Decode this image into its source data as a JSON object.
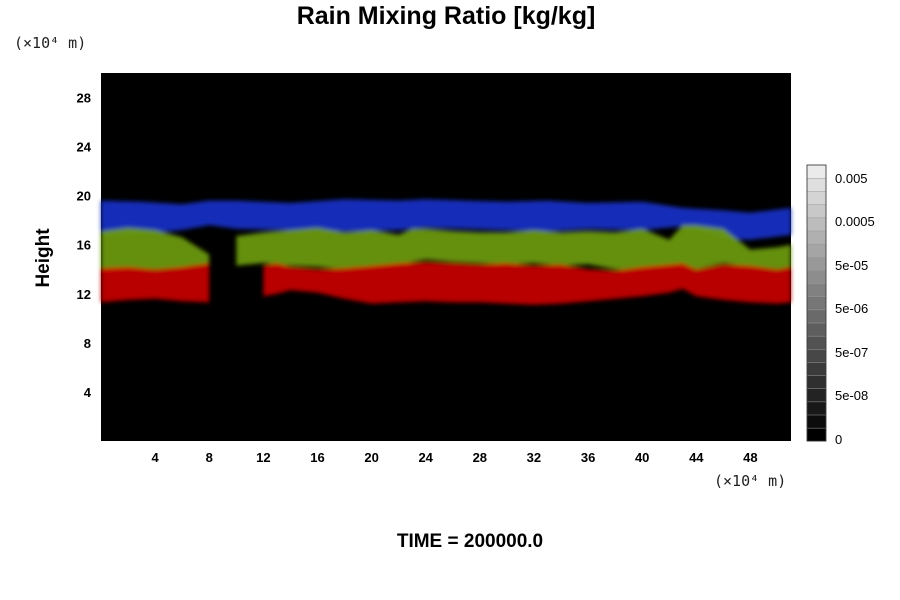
{
  "chart_data": {
    "type": "heatmap",
    "title": "Rain Mixing Ratio [kg/kg]",
    "ylabel": "Height",
    "xlabel": "",
    "x_unit": "(×10⁴ m)",
    "y_unit": "(×10⁴ m)",
    "xlim": [
      0,
      51
    ],
    "ylim": [
      0,
      30
    ],
    "x_ticks": [
      4,
      8,
      12,
      16,
      20,
      24,
      28,
      32,
      36,
      40,
      44,
      48
    ],
    "y_ticks": [
      4,
      8,
      12,
      16,
      20,
      24,
      28
    ],
    "colorbar": {
      "labels": [
        "0.005",
        "0.0005",
        "5e-05",
        "5e-06",
        "5e-07",
        "5e-08",
        "0"
      ],
      "levels": 21
    },
    "layers": [
      {
        "color": "#1830c8",
        "x": [
          0,
          3,
          6,
          8,
          10,
          14,
          18,
          22,
          24,
          27,
          30,
          33,
          36,
          40,
          43,
          46,
          48,
          51
        ],
        "top": [
          19.6,
          19.5,
          19.3,
          19.6,
          19.6,
          19.4,
          19.7,
          19.6,
          19.7,
          19.6,
          19.5,
          19.6,
          19.4,
          19.5,
          19.0,
          18.8,
          18.6,
          19.0
        ],
        "bottom": [
          16.6,
          16.9,
          17.2,
          17.6,
          17.3,
          17.2,
          17.1,
          17.2,
          17.4,
          17.3,
          17.2,
          17.1,
          17.3,
          17.2,
          17.5,
          16.5,
          16.4,
          16.8
        ]
      },
      {
        "color": "#6e9c08",
        "x": [
          0,
          2,
          4,
          6,
          8,
          9,
          10,
          12,
          14,
          16,
          18,
          20,
          22,
          23,
          24,
          26,
          28,
          30,
          32,
          34,
          36,
          38,
          40,
          42,
          43,
          44,
          46,
          48,
          50,
          51
        ],
        "top": [
          17.1,
          17.4,
          17.2,
          16.6,
          15.2,
          null,
          16.7,
          17.0,
          17.2,
          17.4,
          17.0,
          17.2,
          16.8,
          17.3,
          17.3,
          17.1,
          17.0,
          17.0,
          17.2,
          17.0,
          17.1,
          17.0,
          17.3,
          16.4,
          17.6,
          17.6,
          17.3,
          15.6,
          15.8,
          16.0
        ],
        "bottom": [
          13.7,
          13.9,
          14.0,
          14.1,
          14.5,
          null,
          14.3,
          14.5,
          14.3,
          14.2,
          14.0,
          14.1,
          14.3,
          14.6,
          14.8,
          14.6,
          14.5,
          14.4,
          14.5,
          14.3,
          14.4,
          14.0,
          13.9,
          14.2,
          14.3,
          14.0,
          14.5,
          14.2,
          14.0,
          14.2
        ]
      },
      {
        "color": "#c80000",
        "x": [
          0,
          2,
          4,
          6,
          8,
          9,
          10,
          12,
          13,
          14,
          16,
          18,
          20,
          22,
          24,
          26,
          28,
          30,
          32,
          34,
          36,
          38,
          40,
          42,
          43,
          44,
          46,
          48,
          50,
          51
        ],
        "top": [
          14.1,
          14.2,
          14.0,
          14.2,
          14.5,
          null,
          null,
          14.3,
          14.5,
          14.2,
          14.0,
          14.1,
          14.3,
          14.5,
          14.6,
          14.5,
          14.4,
          14.5,
          14.3,
          14.4,
          14.0,
          13.9,
          14.2,
          14.4,
          14.5,
          14.0,
          14.4,
          14.3,
          14.0,
          14.2
        ],
        "bottom": [
          11.3,
          11.5,
          11.6,
          11.4,
          11.3,
          null,
          null,
          11.8,
          12.0,
          12.3,
          12.1,
          11.6,
          11.2,
          11.3,
          11.4,
          11.3,
          11.3,
          11.2,
          11.1,
          11.2,
          11.4,
          11.6,
          11.8,
          12.1,
          12.4,
          11.8,
          11.5,
          11.3,
          11.2,
          11.3
        ]
      }
    ],
    "background_color": "#000000"
  },
  "footer": "TIME = 200000.0"
}
